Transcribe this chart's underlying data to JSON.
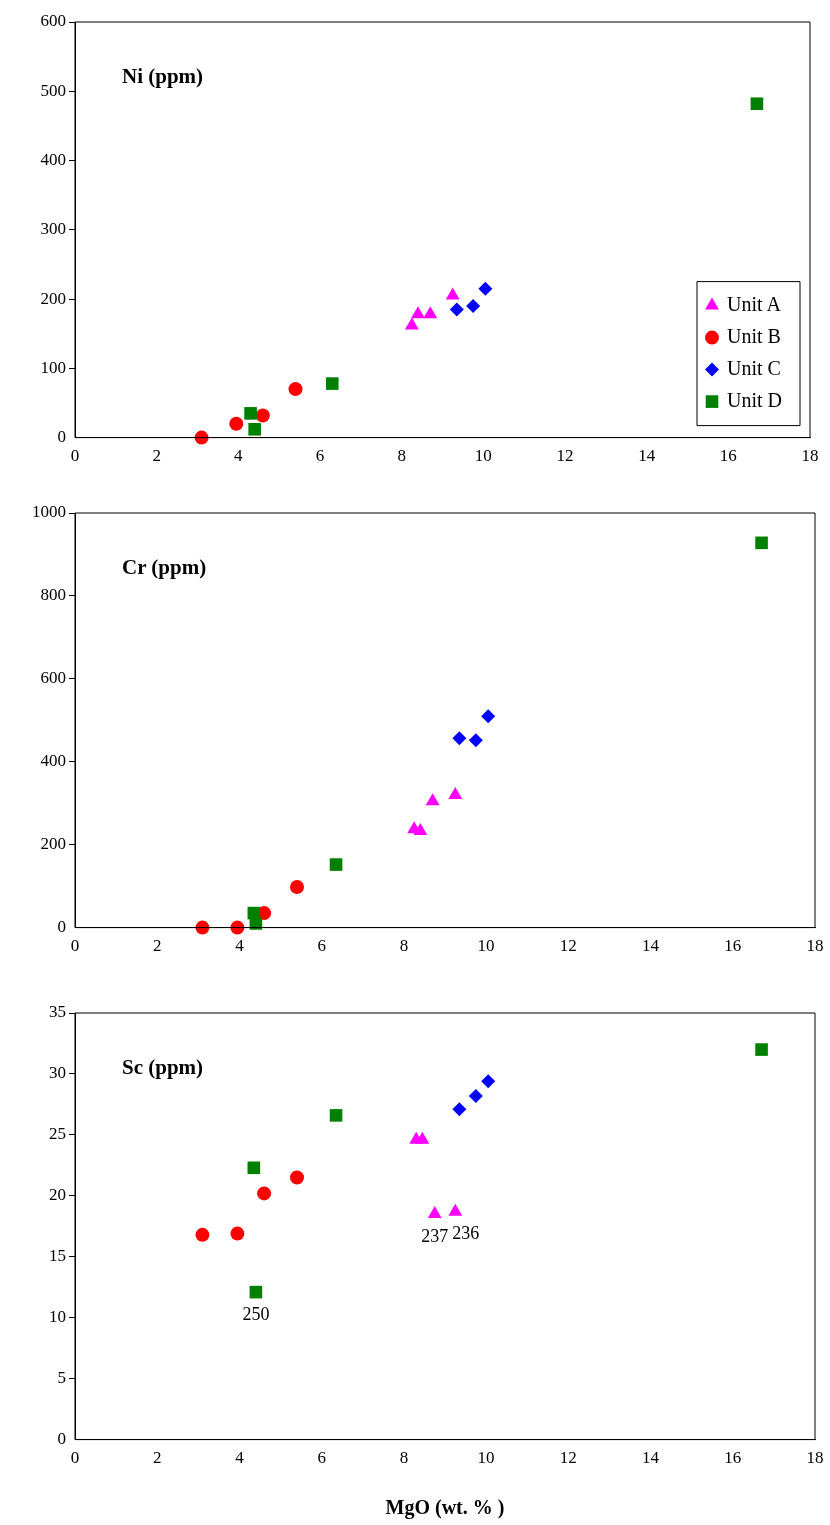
{
  "chart_data": [
    {
      "type": "scatter",
      "title": "Ni (ppm)",
      "xlim": [
        0,
        18
      ],
      "xticks": [
        0,
        2,
        4,
        6,
        8,
        10,
        12,
        14,
        16,
        18
      ],
      "ylim": [
        0,
        600
      ],
      "yticks": [
        0,
        100,
        200,
        300,
        400,
        500,
        600
      ],
      "legend": "bottom right",
      "series": [
        {
          "name": "Unit A",
          "color": "#ff00ff",
          "marker": "triangle",
          "x": [
            8.25,
            8.4,
            8.7,
            9.25
          ],
          "values": [
            162,
            178,
            178,
            205
          ]
        },
        {
          "name": "Unit B",
          "color": "#ff0000",
          "marker": "circle",
          "x": [
            3.1,
            3.95,
            4.6,
            5.4
          ],
          "values": [
            0,
            20,
            32,
            70
          ]
        },
        {
          "name": "Unit C",
          "color": "#0000ff",
          "marker": "diamond",
          "x": [
            9.35,
            9.75,
            10.05
          ],
          "values": [
            185,
            190,
            215
          ]
        },
        {
          "name": "Unit D",
          "color": "#008000",
          "marker": "square",
          "x": [
            4.3,
            4.4,
            6.3,
            16.7
          ],
          "values": [
            35,
            12,
            78,
            482
          ]
        }
      ]
    },
    {
      "type": "scatter",
      "title": "Cr (ppm)",
      "xlim": [
        0,
        18
      ],
      "xticks": [
        0,
        2,
        4,
        6,
        8,
        10,
        12,
        14,
        16,
        18
      ],
      "ylim": [
        0,
        1000
      ],
      "yticks": [
        0,
        200,
        400,
        600,
        800,
        1000
      ],
      "series": [
        {
          "color": "#ff00ff",
          "marker": "triangle",
          "x": [
            8.25,
            8.4,
            8.7,
            9.25
          ],
          "values": [
            237,
            233,
            305,
            320
          ]
        },
        {
          "color": "#ff0000",
          "marker": "circle",
          "x": [
            3.1,
            3.95,
            4.6,
            5.4
          ],
          "values": [
            0,
            0,
            35,
            98
          ]
        },
        {
          "color": "#0000ff",
          "marker": "diamond",
          "x": [
            9.35,
            9.75,
            10.05
          ],
          "values": [
            457,
            452,
            510
          ]
        },
        {
          "color": "#008000",
          "marker": "square",
          "x": [
            4.35,
            4.4,
            6.35,
            16.7
          ],
          "values": [
            35,
            10,
            152,
            928
          ]
        }
      ]
    },
    {
      "type": "scatter",
      "title": "Sc (ppm)",
      "xlabel": "MgO (wt. % )",
      "xlim": [
        0,
        18
      ],
      "xticks": [
        0,
        2,
        4,
        6,
        8,
        10,
        12,
        14,
        16,
        18
      ],
      "ylim": [
        0,
        35
      ],
      "yticks": [
        0,
        5,
        10,
        15,
        20,
        25,
        30,
        35
      ],
      "annotations": [
        {
          "text": "237",
          "x": 8.75,
          "y": 18.5
        },
        {
          "text": "236",
          "x": 9.25,
          "y": 18.7
        },
        {
          "text": "250",
          "x": 4.4,
          "y": 12.1
        }
      ],
      "series": [
        {
          "color": "#ff00ff",
          "marker": "triangle",
          "x": [
            8.3,
            8.45,
            8.75,
            9.25
          ],
          "values": [
            24.6,
            24.6,
            18.5,
            18.7
          ]
        },
        {
          "color": "#ff0000",
          "marker": "circle",
          "x": [
            3.1,
            3.95,
            4.6,
            5.4
          ],
          "values": [
            16.8,
            16.9,
            20.2,
            21.5
          ]
        },
        {
          "color": "#0000ff",
          "marker": "diamond",
          "x": [
            9.35,
            9.75,
            10.05
          ],
          "values": [
            27.1,
            28.2,
            29.4
          ]
        },
        {
          "color": "#008000",
          "marker": "square",
          "x": [
            4.35,
            4.4,
            6.35,
            16.7
          ],
          "values": [
            22.3,
            12.1,
            26.6,
            32
          ]
        }
      ]
    }
  ]
}
